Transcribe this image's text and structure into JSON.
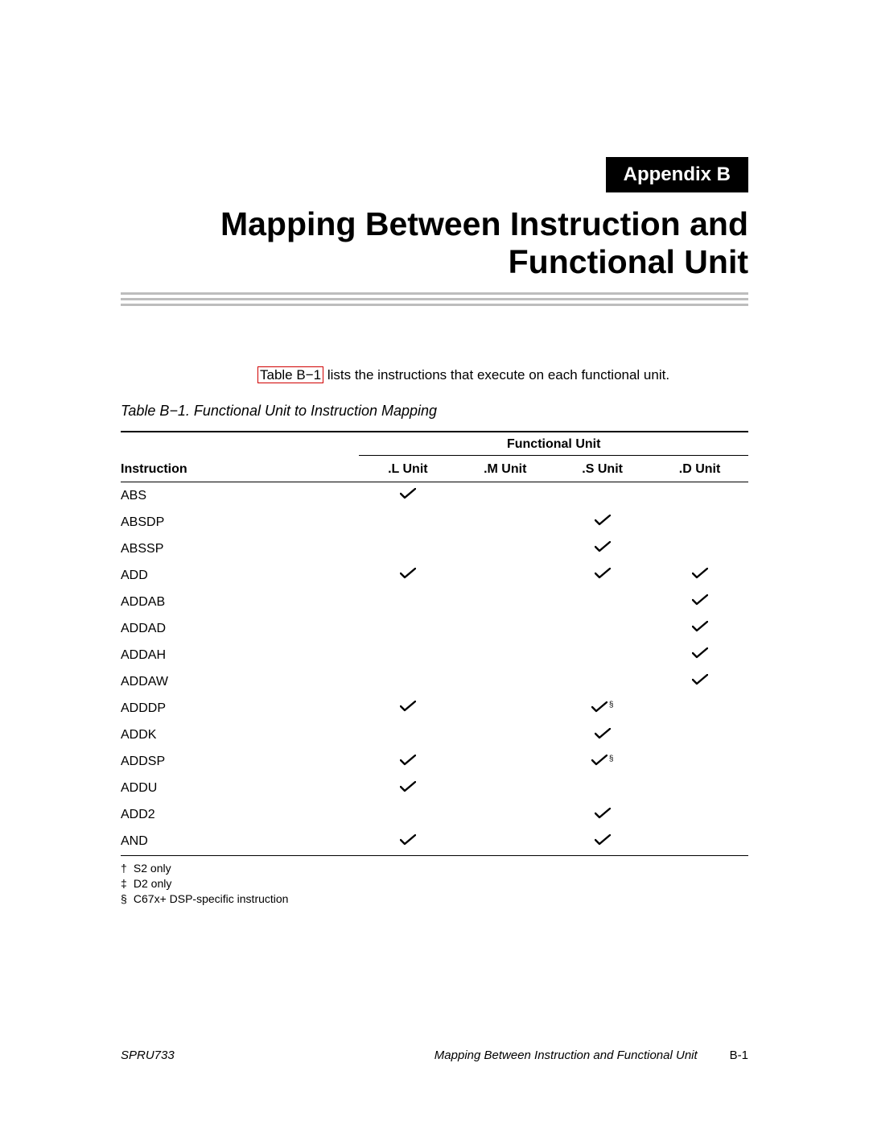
{
  "appendix_label": "Appendix B",
  "title_line1": "Mapping Between Instruction and",
  "title_line2": "Functional Unit",
  "intro_ref": "Table B−1",
  "intro_rest": " lists the instructions that execute on each functional unit.",
  "table_caption": "Table B−1. Functional Unit to Instruction Mapping",
  "group_header": "Functional Unit",
  "col_instruction": "Instruction",
  "columns": [
    ".L Unit",
    ".M Unit",
    ".S Unit",
    ".D Unit"
  ],
  "check_color": "#000000",
  "rows": [
    {
      "inst": "ABS",
      "marks": [
        "check",
        "",
        "",
        ""
      ]
    },
    {
      "inst": "ABSDP",
      "marks": [
        "",
        "",
        "check",
        ""
      ]
    },
    {
      "inst": "ABSSP",
      "marks": [
        "",
        "",
        "check",
        ""
      ]
    },
    {
      "inst": "ADD",
      "marks": [
        "check",
        "",
        "check",
        "check"
      ]
    },
    {
      "inst": "ADDAB",
      "marks": [
        "",
        "",
        "",
        "check"
      ]
    },
    {
      "inst": "ADDAD",
      "marks": [
        "",
        "",
        "",
        "check"
      ]
    },
    {
      "inst": "ADDAH",
      "marks": [
        "",
        "",
        "",
        "check"
      ]
    },
    {
      "inst": "ADDAW",
      "marks": [
        "",
        "",
        "",
        "check"
      ]
    },
    {
      "inst": "ADDDP",
      "marks": [
        "check",
        "",
        "check§",
        ""
      ]
    },
    {
      "inst": "ADDK",
      "marks": [
        "",
        "",
        "check",
        ""
      ]
    },
    {
      "inst": "ADDSP",
      "marks": [
        "check",
        "",
        "check§",
        ""
      ]
    },
    {
      "inst": "ADDU",
      "marks": [
        "check",
        "",
        "",
        ""
      ]
    },
    {
      "inst": "ADD2",
      "marks": [
        "",
        "",
        "check",
        ""
      ]
    },
    {
      "inst": "AND",
      "marks": [
        "check",
        "",
        "check",
        ""
      ]
    }
  ],
  "footnotes": [
    {
      "sym": "†",
      "text": "S2 only"
    },
    {
      "sym": "‡",
      "text": "D2 only"
    },
    {
      "sym": "§",
      "text": "C67x+ DSP-specific instruction"
    }
  ],
  "footer_doc": "SPRU733",
  "footer_section": "Mapping Between Instruction and Functional Unit",
  "footer_page": "B-1",
  "rule_color": "#bdbdbd"
}
